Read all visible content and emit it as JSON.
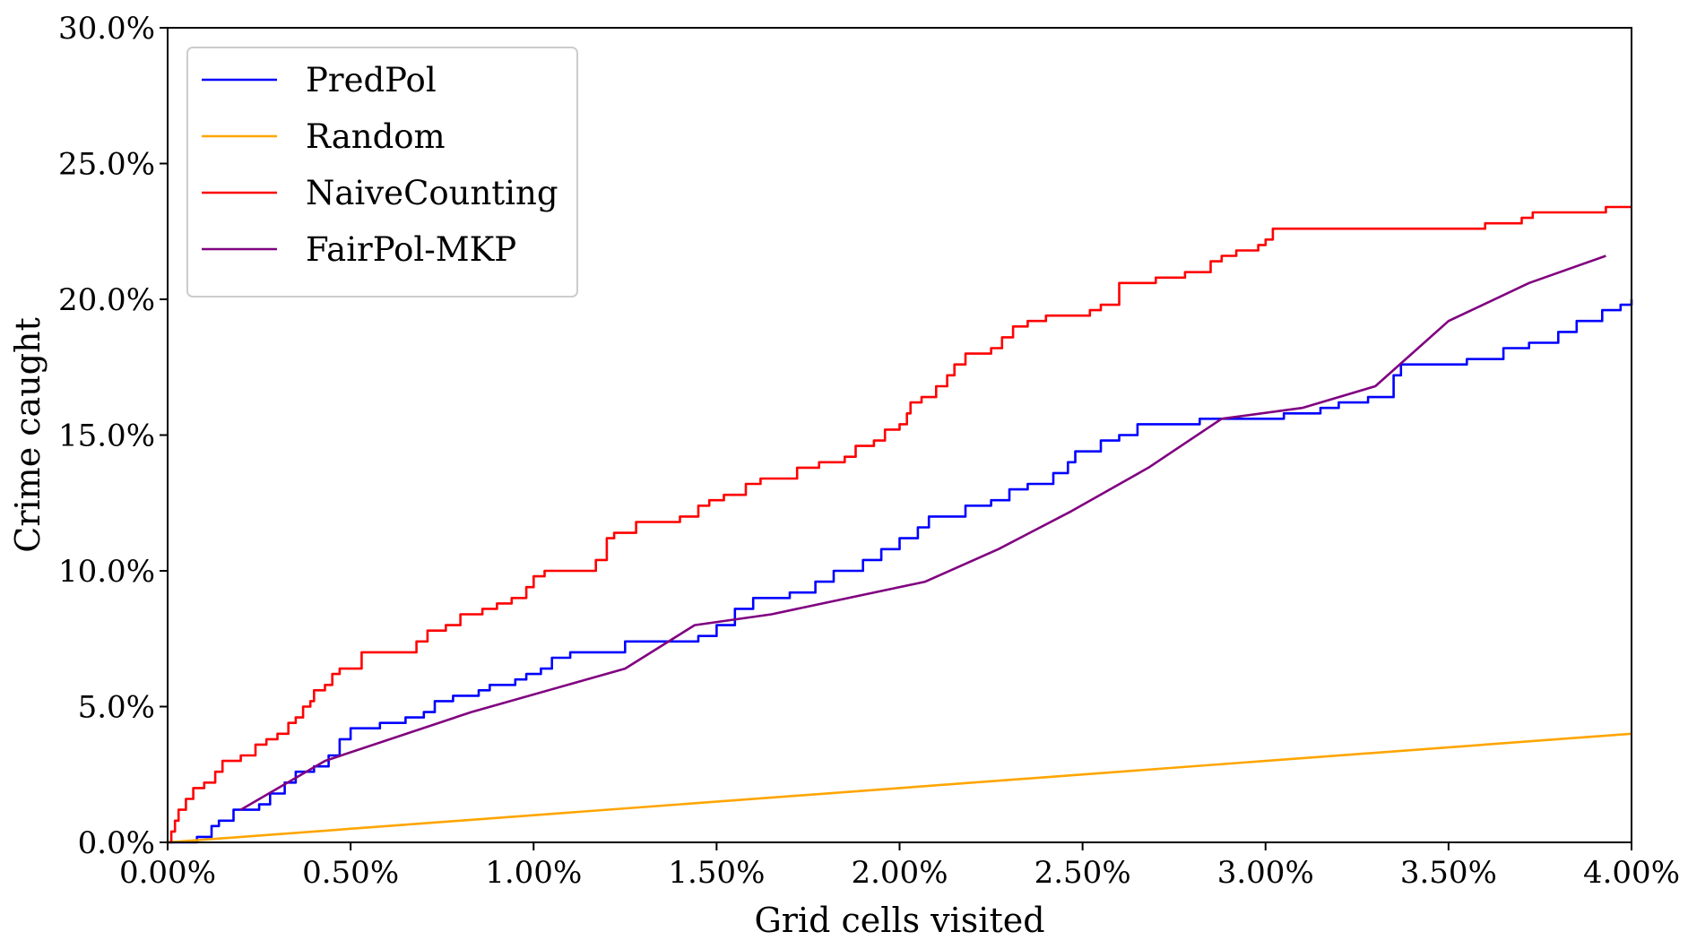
{
  "chart_data": {
    "type": "line",
    "title": "",
    "xlabel": "Grid cells visited",
    "ylabel": "Crime caught",
    "xlim": [
      0,
      4
    ],
    "ylim": [
      0,
      30
    ],
    "x_ticks": [
      "0.00%",
      "0.50%",
      "1.00%",
      "1.50%",
      "2.00%",
      "2.50%",
      "3.00%",
      "3.50%",
      "4.00%"
    ],
    "y_ticks": [
      "0.0%",
      "5.0%",
      "10.0%",
      "15.0%",
      "20.0%",
      "25.0%",
      "30.0%"
    ],
    "grid": false,
    "legend_position": "top-left",
    "series": [
      {
        "name": "PredPol",
        "color": "#0000ff",
        "step": true,
        "points": [
          [
            0,
            0
          ],
          [
            0.08,
            0.2
          ],
          [
            0.12,
            0.6
          ],
          [
            0.14,
            0.8
          ],
          [
            0.18,
            1.2
          ],
          [
            0.25,
            1.4
          ],
          [
            0.28,
            1.8
          ],
          [
            0.32,
            2.2
          ],
          [
            0.35,
            2.6
          ],
          [
            0.4,
            2.8
          ],
          [
            0.44,
            3.2
          ],
          [
            0.47,
            3.8
          ],
          [
            0.5,
            4.2
          ],
          [
            0.58,
            4.4
          ],
          [
            0.65,
            4.6
          ],
          [
            0.7,
            4.8
          ],
          [
            0.73,
            5.2
          ],
          [
            0.78,
            5.4
          ],
          [
            0.85,
            5.6
          ],
          [
            0.88,
            5.8
          ],
          [
            0.95,
            6.0
          ],
          [
            0.98,
            6.2
          ],
          [
            1.02,
            6.4
          ],
          [
            1.05,
            6.8
          ],
          [
            1.1,
            7.0
          ],
          [
            1.25,
            7.4
          ],
          [
            1.35,
            7.4
          ],
          [
            1.45,
            7.6
          ],
          [
            1.5,
            8.0
          ],
          [
            1.55,
            8.6
          ],
          [
            1.6,
            9.0
          ],
          [
            1.7,
            9.2
          ],
          [
            1.77,
            9.6
          ],
          [
            1.82,
            10.0
          ],
          [
            1.9,
            10.4
          ],
          [
            1.95,
            10.8
          ],
          [
            2.0,
            11.2
          ],
          [
            2.05,
            11.6
          ],
          [
            2.08,
            12.0
          ],
          [
            2.18,
            12.4
          ],
          [
            2.25,
            12.6
          ],
          [
            2.3,
            13.0
          ],
          [
            2.35,
            13.2
          ],
          [
            2.42,
            13.6
          ],
          [
            2.46,
            14.0
          ],
          [
            2.48,
            14.4
          ],
          [
            2.55,
            14.8
          ],
          [
            2.6,
            15.0
          ],
          [
            2.65,
            15.4
          ],
          [
            2.82,
            15.6
          ],
          [
            3.05,
            15.8
          ],
          [
            3.15,
            16.0
          ],
          [
            3.2,
            16.2
          ],
          [
            3.28,
            16.4
          ],
          [
            3.35,
            17.2
          ],
          [
            3.37,
            17.6
          ],
          [
            3.55,
            17.8
          ],
          [
            3.65,
            18.2
          ],
          [
            3.72,
            18.4
          ],
          [
            3.8,
            18.8
          ],
          [
            3.85,
            19.2
          ],
          [
            3.92,
            19.6
          ],
          [
            3.97,
            19.8
          ],
          [
            4.0,
            20.0
          ]
        ]
      },
      {
        "name": "Random",
        "color": "#ffa500",
        "step": false,
        "points": [
          [
            0,
            0
          ],
          [
            4.0,
            4.0
          ]
        ]
      },
      {
        "name": "NaiveCounting",
        "color": "#ff0000",
        "step": true,
        "points": [
          [
            0,
            0
          ],
          [
            0.01,
            0.4
          ],
          [
            0.02,
            0.8
          ],
          [
            0.03,
            1.2
          ],
          [
            0.05,
            1.6
          ],
          [
            0.07,
            2.0
          ],
          [
            0.1,
            2.2
          ],
          [
            0.13,
            2.6
          ],
          [
            0.15,
            3.0
          ],
          [
            0.2,
            3.2
          ],
          [
            0.24,
            3.6
          ],
          [
            0.27,
            3.8
          ],
          [
            0.3,
            4.0
          ],
          [
            0.33,
            4.4
          ],
          [
            0.35,
            4.6
          ],
          [
            0.37,
            5.0
          ],
          [
            0.39,
            5.2
          ],
          [
            0.4,
            5.6
          ],
          [
            0.43,
            5.8
          ],
          [
            0.45,
            6.2
          ],
          [
            0.47,
            6.4
          ],
          [
            0.53,
            7.0
          ],
          [
            0.68,
            7.4
          ],
          [
            0.71,
            7.8
          ],
          [
            0.76,
            8.0
          ],
          [
            0.8,
            8.4
          ],
          [
            0.86,
            8.6
          ],
          [
            0.9,
            8.8
          ],
          [
            0.94,
            9.0
          ],
          [
            0.98,
            9.4
          ],
          [
            1.0,
            9.8
          ],
          [
            1.03,
            10.0
          ],
          [
            1.17,
            10.4
          ],
          [
            1.2,
            11.2
          ],
          [
            1.22,
            11.4
          ],
          [
            1.28,
            11.8
          ],
          [
            1.4,
            12.0
          ],
          [
            1.45,
            12.4
          ],
          [
            1.48,
            12.6
          ],
          [
            1.52,
            12.8
          ],
          [
            1.58,
            13.2
          ],
          [
            1.62,
            13.4
          ],
          [
            1.72,
            13.8
          ],
          [
            1.78,
            14.0
          ],
          [
            1.85,
            14.2
          ],
          [
            1.88,
            14.6
          ],
          [
            1.93,
            14.8
          ],
          [
            1.96,
            15.2
          ],
          [
            2.0,
            15.4
          ],
          [
            2.02,
            15.8
          ],
          [
            2.03,
            16.2
          ],
          [
            2.06,
            16.4
          ],
          [
            2.1,
            16.8
          ],
          [
            2.13,
            17.2
          ],
          [
            2.15,
            17.6
          ],
          [
            2.18,
            18.0
          ],
          [
            2.25,
            18.2
          ],
          [
            2.28,
            18.6
          ],
          [
            2.31,
            19.0
          ],
          [
            2.35,
            19.2
          ],
          [
            2.4,
            19.4
          ],
          [
            2.52,
            19.6
          ],
          [
            2.55,
            19.8
          ],
          [
            2.6,
            20.6
          ],
          [
            2.7,
            20.8
          ],
          [
            2.78,
            21.0
          ],
          [
            2.85,
            21.4
          ],
          [
            2.88,
            21.6
          ],
          [
            2.92,
            21.8
          ],
          [
            2.98,
            22.0
          ],
          [
            3.0,
            22.2
          ],
          [
            3.02,
            22.6
          ],
          [
            3.6,
            22.8
          ],
          [
            3.7,
            23.0
          ],
          [
            3.73,
            23.2
          ],
          [
            3.93,
            23.4
          ],
          [
            4.0,
            23.4
          ]
        ]
      },
      {
        "name": "FairPol-MKP",
        "color": "#800080",
        "step": false,
        "points": [
          [
            0.2,
            1.2
          ],
          [
            0.43,
            3.0
          ],
          [
            0.83,
            4.8
          ],
          [
            1.25,
            6.4
          ],
          [
            1.44,
            8.0
          ],
          [
            1.65,
            8.4
          ],
          [
            2.07,
            9.6
          ],
          [
            2.27,
            10.8
          ],
          [
            2.47,
            12.2
          ],
          [
            2.68,
            13.8
          ],
          [
            2.88,
            15.6
          ],
          [
            3.1,
            16.0
          ],
          [
            3.3,
            16.8
          ],
          [
            3.5,
            19.2
          ],
          [
            3.72,
            20.6
          ],
          [
            3.93,
            21.6
          ]
        ]
      }
    ]
  }
}
